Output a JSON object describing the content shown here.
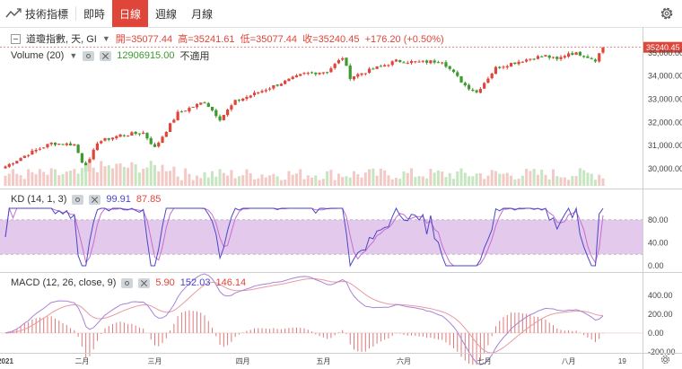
{
  "toolbar": {
    "indicators_label": "技術指標",
    "tabs": [
      {
        "label": "即時",
        "active": false
      },
      {
        "label": "日線",
        "active": true
      },
      {
        "label": "週線",
        "active": false
      },
      {
        "label": "月線",
        "active": false
      }
    ],
    "settings_icon": "gear-icon"
  },
  "main_legend": {
    "title": "道瓊指數, 天, GI",
    "open_label": "開",
    "open": "35077.44",
    "high_label": "高",
    "high": "35241.61",
    "low_label": "低",
    "low": "35077.44",
    "close_label": "收",
    "close": "35240.45",
    "change": "+176.20 (+0.50%)",
    "last_price_tag": "35240.45"
  },
  "volume_legend": {
    "name": "Volume (20)",
    "value": "12906915.00",
    "note": "不適用"
  },
  "kd_legend": {
    "name": "KD (14, 1, 3)",
    "k": "99.91",
    "d": "87.85"
  },
  "macd_legend": {
    "name": "MACD (12, 26, close, 9)",
    "hist": "5.90",
    "macd": "152.03",
    "signal": "146.14"
  },
  "colors": {
    "up": "#e0453a",
    "down": "#3d9a2d",
    "k_line": "#4b46c7",
    "d_line": "#c96bd0",
    "kd_band": "#d9b8e5",
    "macd_line": "#a883d8",
    "signal_line": "#e89aa2",
    "hist": "#e07878"
  },
  "chart_data": [
    {
      "type": "candlestick",
      "title": "道瓊指數, 天, GI",
      "ylim": [
        29300,
        35500
      ],
      "y_ticks": [
        30000,
        31000,
        32000,
        33000,
        34000,
        35000
      ],
      "x_labels": [
        "2021",
        "二月",
        "三月",
        "四月",
        "五月",
        "六月",
        "七月",
        "八月",
        "19"
      ],
      "x_label_positions": [
        0,
        20,
        39,
        62,
        83,
        104,
        125,
        147,
        161
      ],
      "grid": false,
      "anchors": [
        [
          0,
          30100
        ],
        [
          6,
          30650
        ],
        [
          12,
          31100
        ],
        [
          18,
          31050
        ],
        [
          21,
          29950
        ],
        [
          24,
          31150
        ],
        [
          30,
          31450
        ],
        [
          36,
          31550
        ],
        [
          39,
          30900
        ],
        [
          45,
          32400
        ],
        [
          52,
          32900
        ],
        [
          56,
          32150
        ],
        [
          60,
          32900
        ],
        [
          66,
          33300
        ],
        [
          72,
          33700
        ],
        [
          78,
          34100
        ],
        [
          84,
          34200
        ],
        [
          88,
          34800
        ],
        [
          90,
          33950
        ],
        [
          96,
          34300
        ],
        [
          102,
          34650
        ],
        [
          108,
          34600
        ],
        [
          114,
          34650
        ],
        [
          120,
          33600
        ],
        [
          123,
          33300
        ],
        [
          128,
          34350
        ],
        [
          132,
          34550
        ],
        [
          138,
          34800
        ],
        [
          141,
          34870
        ],
        [
          144,
          34700
        ],
        [
          147,
          35000
        ],
        [
          150,
          34950
        ],
        [
          154,
          34700
        ],
        [
          156,
          35240
        ]
      ],
      "last_close": 35240.45
    },
    {
      "type": "bar",
      "title": "Volume (20)",
      "note": "不適用"
    },
    {
      "type": "line",
      "title": "KD (14, 1, 3)",
      "ylim": [
        0,
        100
      ],
      "y_ticks": [
        0,
        40,
        80
      ],
      "band": [
        20,
        80
      ],
      "series": [
        {
          "name": "K",
          "last": 99.91
        },
        {
          "name": "D",
          "last": 87.85
        }
      ]
    },
    {
      "type": "line",
      "title": "MACD (12, 26, close, 9)",
      "ylim": [
        -200,
        560
      ],
      "y_ticks": [
        -200,
        0,
        200,
        400
      ],
      "series": [
        {
          "name": "MACD",
          "last": 152.03
        },
        {
          "name": "Signal",
          "last": 146.14
        },
        {
          "name": "Histogram",
          "last": 5.9
        }
      ]
    }
  ]
}
